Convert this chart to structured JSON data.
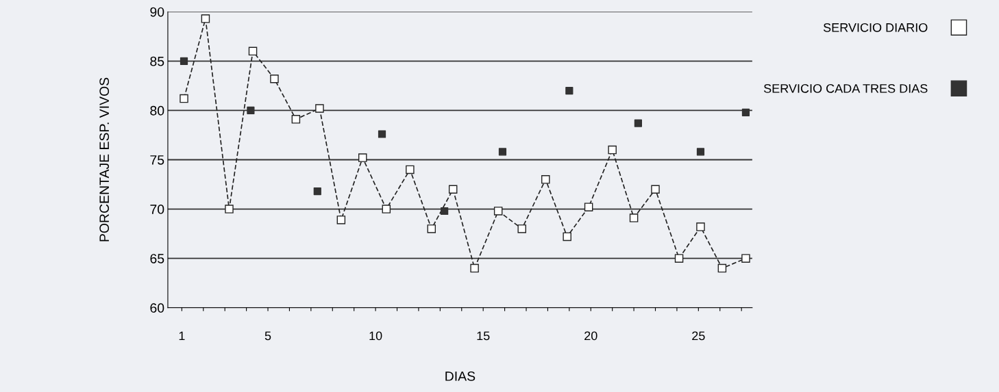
{
  "chart_data": {
    "type": "line",
    "xlabel": "DIAS",
    "ylabel": "PORCENTAJE ESP. VIVOS",
    "xlim": [
      0.35,
      27.5
    ],
    "ylim": [
      60,
      90
    ],
    "xticks": [
      1,
      {
        "value": 2,
        "label": null
      },
      {
        "value": 3,
        "label": null
      },
      {
        "value": 4,
        "label": null
      },
      5,
      {
        "value": 6,
        "label": null
      },
      {
        "value": 7,
        "label": null
      },
      {
        "value": 8,
        "label": null
      },
      {
        "value": 9,
        "label": null
      },
      10,
      {
        "value": 11,
        "label": null
      },
      {
        "value": 12,
        "label": null
      },
      {
        "value": 13,
        "label": null
      },
      {
        "value": 14,
        "label": null
      },
      15,
      {
        "value": 16,
        "label": null
      },
      {
        "value": 17,
        "label": null
      },
      {
        "value": 18,
        "label": null
      },
      {
        "value": 19,
        "label": null
      },
      20,
      {
        "value": 21,
        "label": null
      },
      {
        "value": 22,
        "label": null
      },
      {
        "value": 23,
        "label": null
      },
      {
        "value": 24,
        "label": null
      },
      25,
      {
        "value": 26,
        "label": null
      },
      {
        "value": 27,
        "label": null
      }
    ],
    "yticks": [
      60,
      65,
      70,
      75,
      80,
      85,
      90
    ],
    "grid": "y",
    "legend": "right",
    "series": [
      {
        "name": "SERVICIO DIARIO",
        "color": "#222222",
        "marker": "square",
        "line_style": "dashed",
        "x": [
          1.1,
          2.1,
          3.2,
          4.3,
          5.3,
          6.3,
          7.4,
          8.4,
          9.4,
          10.5,
          11.6,
          12.6,
          13.6,
          14.6,
          15.7,
          16.8,
          17.9,
          18.9,
          19.9,
          21.0,
          22.0,
          23.0,
          24.1,
          25.1,
          26.1,
          27.2
        ],
        "values": [
          81.2,
          89.3,
          70,
          86,
          83.2,
          79.1,
          80.2,
          68.9,
          75.2,
          70,
          74,
          68,
          72,
          64,
          69.8,
          68,
          73,
          67.2,
          70.2,
          76,
          69.1,
          72,
          65,
          68.2,
          64,
          65
        ]
      },
      {
        "name": "SERVICIO CADA TRES DIAS",
        "type": "scatter",
        "color": "#333333",
        "marker": "square",
        "x": [
          1.1,
          4.2,
          7.3,
          10.3,
          13.2,
          15.9,
          19.0,
          22.2,
          25.1,
          27.2
        ],
        "values": [
          85,
          80,
          71.8,
          77.6,
          69.8,
          75.8,
          82,
          78.7,
          75.8,
          79.8
        ]
      }
    ]
  }
}
